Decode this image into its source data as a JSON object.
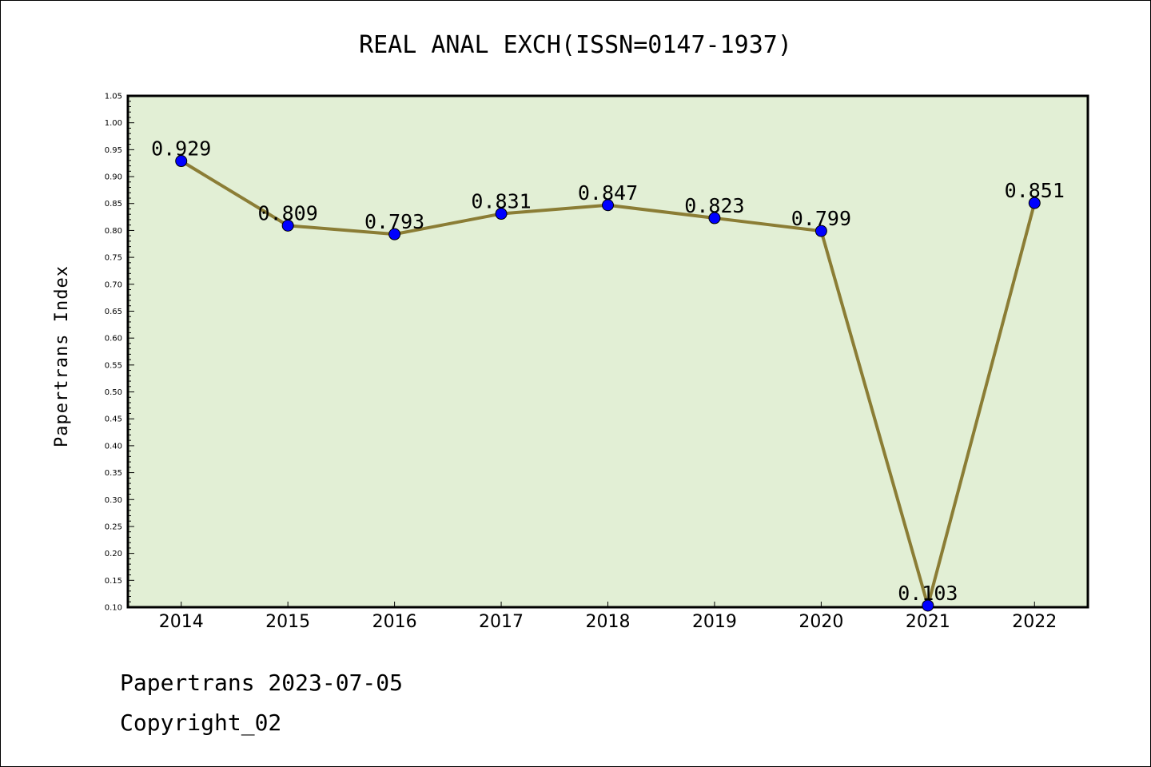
{
  "chart_data": {
    "type": "line",
    "title": "REAL ANAL EXCH(ISSN=0147-1937)",
    "xlabel": "",
    "ylabel": "Papertrans Index",
    "categories": [
      "2014",
      "2015",
      "2016",
      "2017",
      "2018",
      "2019",
      "2020",
      "2021",
      "2022"
    ],
    "series": [
      {
        "name": "Papertrans Index",
        "values": [
          0.929,
          0.809,
          0.793,
          0.831,
          0.847,
          0.823,
          0.799,
          0.103,
          0.851
        ],
        "labels": [
          "0.929",
          "0.809",
          "0.793",
          "0.831",
          "0.847",
          "0.823",
          "0.799",
          "0.103",
          "0.851"
        ]
      }
    ],
    "ylim": [
      0.1,
      1.05
    ],
    "yticks": [
      "0.10",
      "0.15",
      "0.20",
      "0.25",
      "0.30",
      "0.35",
      "0.40",
      "0.45",
      "0.50",
      "0.55",
      "0.60",
      "0.65",
      "0.70",
      "0.75",
      "0.80",
      "0.85",
      "0.90",
      "0.95",
      "1.00",
      "1.05"
    ],
    "grid": false,
    "colors": {
      "plot_background": "#e2efd5",
      "line": "#8b7d35",
      "marker": "#0000ff"
    }
  },
  "footer": {
    "line1": "Papertrans 2023-07-05",
    "line2": "Copyright_02"
  }
}
